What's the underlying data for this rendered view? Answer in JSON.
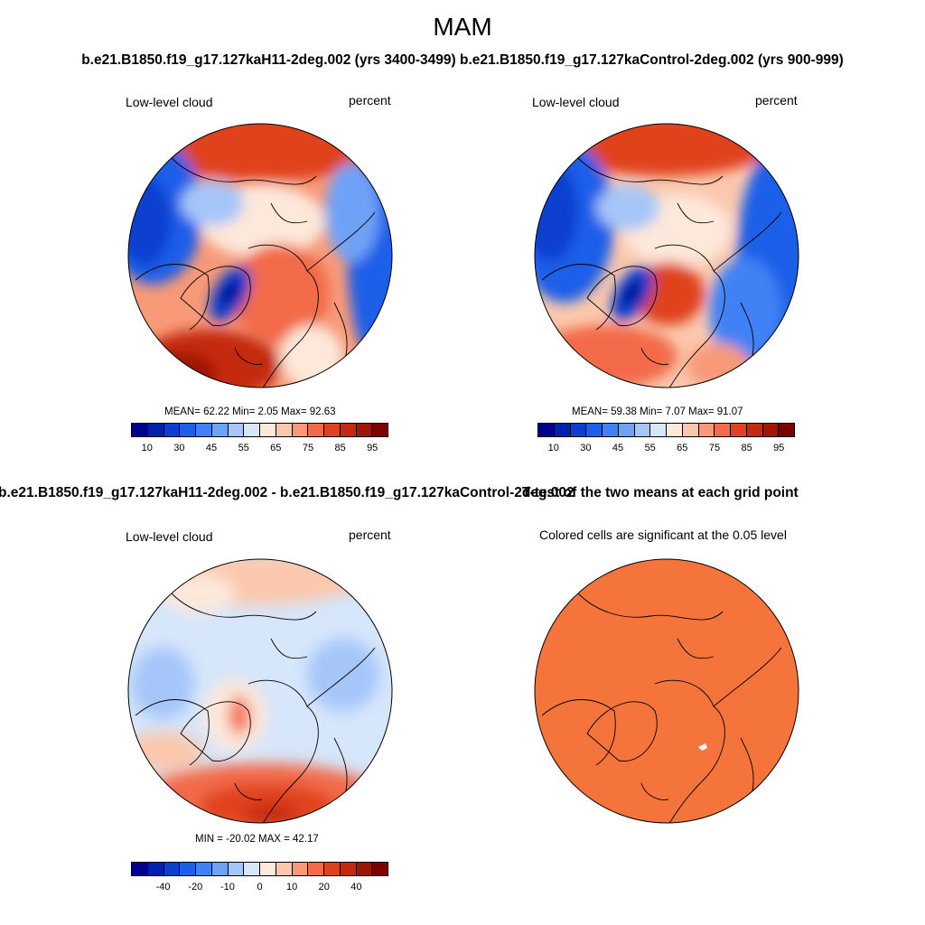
{
  "header": {
    "season": "MAM",
    "runs_line": "b.e21.B1850.f19_g17.127kaH11-2deg.002 (yrs 3400-3499)   b.e21.B1850.f19_g17.127kaControl-2deg.002 (yrs 900-999)"
  },
  "panel_h11": {
    "variable": "Low-level cloud",
    "units": "percent",
    "stats": "MEAN=  62.22  Min=   2.05  Max=  92.63",
    "colorbar": {
      "colors": [
        "#00008f",
        "#0020b0",
        "#0a3fcf",
        "#1c5fe8",
        "#3f82f5",
        "#6ea2f7",
        "#a6c6f9",
        "#d6e6fb",
        "#fde8da",
        "#fbc8ad",
        "#f89a78",
        "#f36b48",
        "#e0421e",
        "#c42a0e",
        "#a11505",
        "#7d0000"
      ],
      "tick_labels": [
        "10",
        "30",
        "45",
        "55",
        "65",
        "75",
        "85",
        "95"
      ]
    }
  },
  "panel_control": {
    "variable": "Low-level cloud",
    "units": "percent",
    "stats": "MEAN=  59.38  Min=   7.07  Max=  91.07",
    "colorbar": {
      "colors": [
        "#00008f",
        "#0020b0",
        "#0a3fcf",
        "#1c5fe8",
        "#3f82f5",
        "#6ea2f7",
        "#a6c6f9",
        "#d6e6fb",
        "#fde8da",
        "#fbc8ad",
        "#f89a78",
        "#f36b48",
        "#e0421e",
        "#c42a0e",
        "#a11505",
        "#7d0000"
      ],
      "tick_labels": [
        "10",
        "30",
        "45",
        "55",
        "65",
        "75",
        "85",
        "95"
      ]
    }
  },
  "panel_diff": {
    "header": "b.e21.B1850.f19_g17.127kaH11-2deg.002 - b.e21.B1850.f19_g17.127kaControl-2deg.002",
    "variable": "Low-level cloud",
    "units": "percent",
    "stats": "MIN = -20.02 MAX =  42.17",
    "colorbar": {
      "colors": [
        "#00008f",
        "#0020b0",
        "#0a3fcf",
        "#1c5fe8",
        "#3f82f5",
        "#6ea2f7",
        "#a6c6f9",
        "#d6e6fb",
        "#fde8da",
        "#fbc8ad",
        "#f89a78",
        "#f36b48",
        "#e0421e",
        "#c42a0e",
        "#a11505",
        "#7d0000"
      ],
      "tick_labels": [
        "-40",
        "-20",
        "-10",
        "0",
        "10",
        "20",
        "40"
      ]
    }
  },
  "panel_ttest": {
    "header": "T-test of the two means at each grid point",
    "note": "Colored cells are significant at the 0.05 level",
    "fill_color": "#f5743c"
  }
}
